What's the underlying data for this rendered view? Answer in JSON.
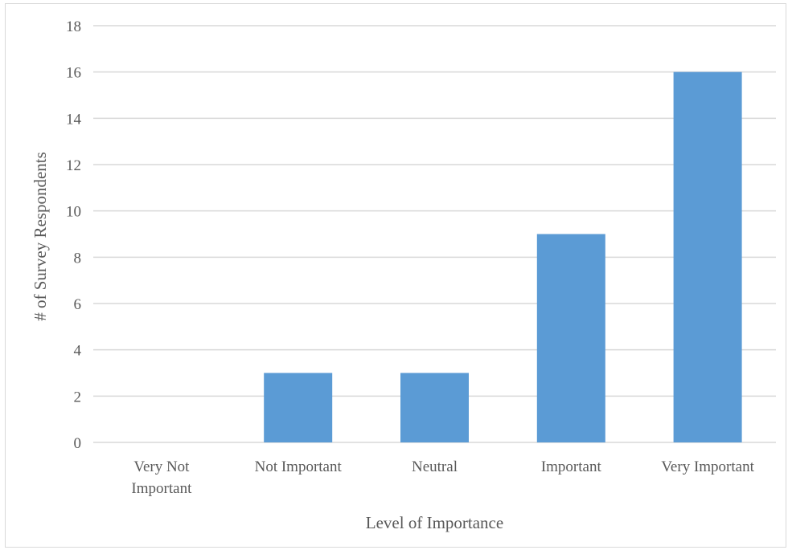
{
  "chart_data": {
    "type": "bar",
    "categories": [
      "Very Not Important",
      "Not Important",
      "Neutral",
      "Important",
      "Very Important"
    ],
    "category_lines": [
      [
        "Very Not",
        "Important"
      ],
      [
        "Not Important"
      ],
      [
        "Neutral"
      ],
      [
        "Important"
      ],
      [
        "Very Important"
      ]
    ],
    "values": [
      0,
      3,
      3,
      9,
      16
    ],
    "title": "",
    "xlabel": "Level of Importance",
    "ylabel": "# of Survey Respondents",
    "ylim": [
      0,
      18
    ],
    "yticks": [
      0,
      2,
      4,
      6,
      8,
      10,
      12,
      14,
      16,
      18
    ],
    "grid": true,
    "legend": "none",
    "bar_color": "#5b9bd5",
    "grid_color": "#d9d9d9",
    "text_color": "#595959"
  }
}
